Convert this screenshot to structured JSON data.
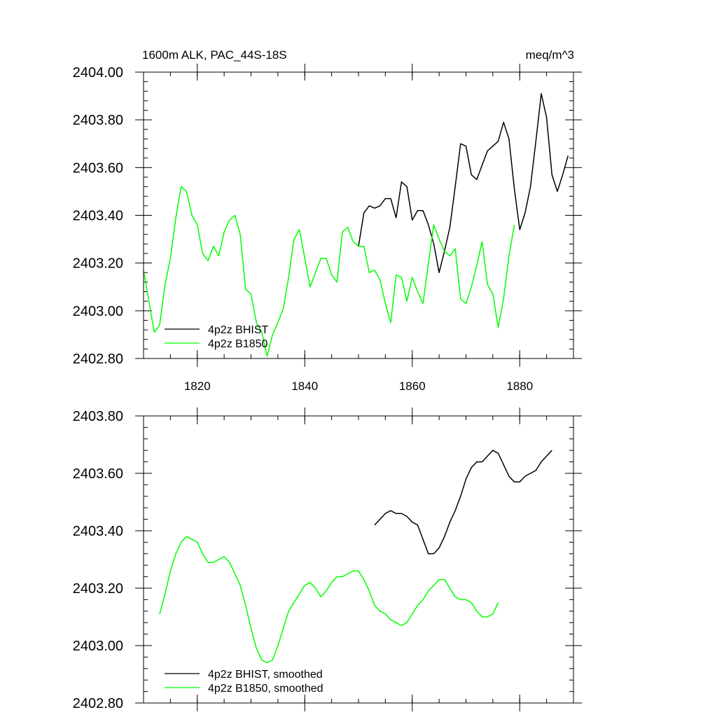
{
  "chart_data": [
    {
      "type": "line",
      "title": "1600m ALK, PAC_44S-18S",
      "units": "meq/m^3",
      "xlim": [
        1810,
        1890
      ],
      "ylim": [
        2402.8,
        2404.0
      ],
      "x_ticks": [
        1820,
        1840,
        1860,
        1880
      ],
      "x_tick_labels": [
        "1820",
        "1840",
        "1860",
        "1880"
      ],
      "y_ticks": [
        2402.8,
        2403.0,
        2403.2,
        2403.4,
        2403.6,
        2403.8,
        2404.0
      ],
      "y_tick_labels": [
        "2402.80",
        "2403.00",
        "2403.20",
        "2403.40",
        "2403.60",
        "2403.80",
        "2404.00"
      ],
      "legend_position": "lower-left",
      "series": [
        {
          "name": "4p2z BHIST",
          "color": "#000000",
          "x": [
            1850,
            1851,
            1852,
            1853,
            1854,
            1855,
            1856,
            1857,
            1858,
            1859,
            1860,
            1861,
            1862,
            1863,
            1864,
            1865,
            1866,
            1867,
            1868,
            1869,
            1870,
            1871,
            1872,
            1873,
            1874,
            1875,
            1876,
            1877,
            1878,
            1879,
            1880,
            1881,
            1882,
            1883,
            1884,
            1885,
            1886,
            1887,
            1888,
            1889
          ],
          "values": [
            2403.27,
            2403.41,
            2403.44,
            2403.43,
            2403.44,
            2403.47,
            2403.47,
            2403.39,
            2403.54,
            2403.52,
            2403.38,
            2403.42,
            2403.42,
            2403.36,
            2403.28,
            2403.16,
            2403.25,
            2403.35,
            2403.52,
            2403.7,
            2403.69,
            2403.57,
            2403.55,
            2403.61,
            2403.67,
            2403.69,
            2403.71,
            2403.79,
            2403.72,
            2403.51,
            2403.34,
            2403.41,
            2403.52,
            2403.71,
            2403.91,
            2403.81,
            2403.57,
            2403.5,
            2403.57,
            2403.65
          ]
        },
        {
          "name": "4p2z B1850",
          "color": "#00ff00",
          "x": [
            1810,
            1811,
            1812,
            1813,
            1814,
            1815,
            1816,
            1817,
            1818,
            1819,
            1820,
            1821,
            1822,
            1823,
            1824,
            1825,
            1826,
            1827,
            1828,
            1829,
            1830,
            1831,
            1832,
            1833,
            1834,
            1835,
            1836,
            1837,
            1838,
            1839,
            1840,
            1841,
            1842,
            1843,
            1844,
            1845,
            1846,
            1847,
            1848,
            1849,
            1850,
            1851,
            1852,
            1853,
            1854,
            1855,
            1856,
            1857,
            1858,
            1859,
            1860,
            1861,
            1862,
            1863,
            1864,
            1865,
            1866,
            1867,
            1868,
            1869,
            1870,
            1871,
            1872,
            1873,
            1874,
            1875,
            1876,
            1877,
            1878,
            1879
          ],
          "values": [
            2403.17,
            2403.04,
            2402.91,
            2402.94,
            2403.11,
            2403.22,
            2403.39,
            2403.52,
            2403.5,
            2403.4,
            2403.36,
            2403.24,
            2403.21,
            2403.27,
            2403.23,
            2403.33,
            2403.38,
            2403.4,
            2403.32,
            2403.09,
            2403.07,
            2402.95,
            2402.91,
            2402.81,
            2402.9,
            2402.95,
            2403.01,
            2403.14,
            2403.3,
            2403.34,
            2403.22,
            2403.1,
            2403.16,
            2403.22,
            2403.22,
            2403.15,
            2403.12,
            2403.33,
            2403.35,
            2403.29,
            2403.27,
            2403.27,
            2403.16,
            2403.17,
            2403.13,
            2403.03,
            2402.95,
            2403.15,
            2403.14,
            2403.04,
            2403.14,
            2403.08,
            2403.03,
            2403.2,
            2403.36,
            2403.3,
            2403.25,
            2403.23,
            2403.26,
            2403.05,
            2403.03,
            2403.1,
            2403.19,
            2403.29,
            2403.11,
            2403.07,
            2402.93,
            2403.05,
            2403.23,
            2403.36
          ]
        }
      ]
    },
    {
      "type": "line",
      "title": "",
      "units": "",
      "xlim": [
        1810,
        1890
      ],
      "ylim": [
        2402.8,
        2403.8
      ],
      "x_ticks": [
        1820,
        1840,
        1860,
        1880
      ],
      "x_tick_labels": [],
      "y_ticks": [
        2402.8,
        2403.0,
        2403.2,
        2403.4,
        2403.6,
        2403.8
      ],
      "y_tick_labels": [
        "2402.80",
        "2403.00",
        "2403.20",
        "2403.40",
        "2403.60",
        "2403.80"
      ],
      "legend_position": "lower-left",
      "series": [
        {
          "name": "4p2z BHIST, smoothed",
          "color": "#000000",
          "x": [
            1853,
            1854,
            1855,
            1856,
            1857,
            1858,
            1859,
            1860,
            1861,
            1862,
            1863,
            1864,
            1865,
            1866,
            1867,
            1868,
            1869,
            1870,
            1871,
            1872,
            1873,
            1874,
            1875,
            1876,
            1877,
            1878,
            1879,
            1880,
            1881,
            1882,
            1883,
            1884,
            1885,
            1886
          ],
          "values": [
            2403.42,
            2403.44,
            2403.46,
            2403.47,
            2403.46,
            2403.46,
            2403.45,
            2403.43,
            2403.42,
            2403.37,
            2403.32,
            2403.32,
            2403.34,
            2403.38,
            2403.43,
            2403.47,
            2403.52,
            2403.58,
            2403.62,
            2403.64,
            2403.64,
            2403.66,
            2403.68,
            2403.67,
            2403.63,
            2403.59,
            2403.57,
            2403.57,
            2403.59,
            2403.6,
            2403.61,
            2403.64,
            2403.66,
            2403.68
          ]
        },
        {
          "name": "4p2z B1850, smoothed",
          "color": "#00ff00",
          "x": [
            1813,
            1814,
            1815,
            1816,
            1817,
            1818,
            1819,
            1820,
            1821,
            1822,
            1823,
            1824,
            1825,
            1826,
            1827,
            1828,
            1829,
            1830,
            1831,
            1832,
            1833,
            1834,
            1835,
            1836,
            1837,
            1838,
            1839,
            1840,
            1841,
            1842,
            1843,
            1844,
            1845,
            1846,
            1847,
            1848,
            1849,
            1850,
            1851,
            1852,
            1853,
            1854,
            1855,
            1856,
            1857,
            1858,
            1859,
            1860,
            1861,
            1862,
            1863,
            1864,
            1865,
            1866,
            1867,
            1868,
            1869,
            1870,
            1871,
            1872,
            1873,
            1874,
            1875,
            1876
          ],
          "values": [
            2403.11,
            2403.18,
            2403.26,
            2403.32,
            2403.36,
            2403.38,
            2403.37,
            2403.36,
            2403.32,
            2403.29,
            2403.29,
            2403.3,
            2403.31,
            2403.29,
            2403.25,
            2403.21,
            2403.14,
            2403.06,
            2402.99,
            2402.95,
            2402.94,
            2402.95,
            2403.0,
            2403.06,
            2403.12,
            2403.15,
            2403.18,
            2403.21,
            2403.22,
            2403.2,
            2403.17,
            2403.19,
            2403.22,
            2403.24,
            2403.24,
            2403.25,
            2403.26,
            2403.26,
            2403.23,
            2403.19,
            2403.14,
            2403.12,
            2403.11,
            2403.09,
            2403.08,
            2403.07,
            2403.08,
            2403.11,
            2403.14,
            2403.16,
            2403.19,
            2403.21,
            2403.23,
            2403.23,
            2403.2,
            2403.17,
            2403.16,
            2403.16,
            2403.15,
            2403.12,
            2403.1,
            2403.1,
            2403.11,
            2403.15
          ]
        }
      ]
    }
  ]
}
